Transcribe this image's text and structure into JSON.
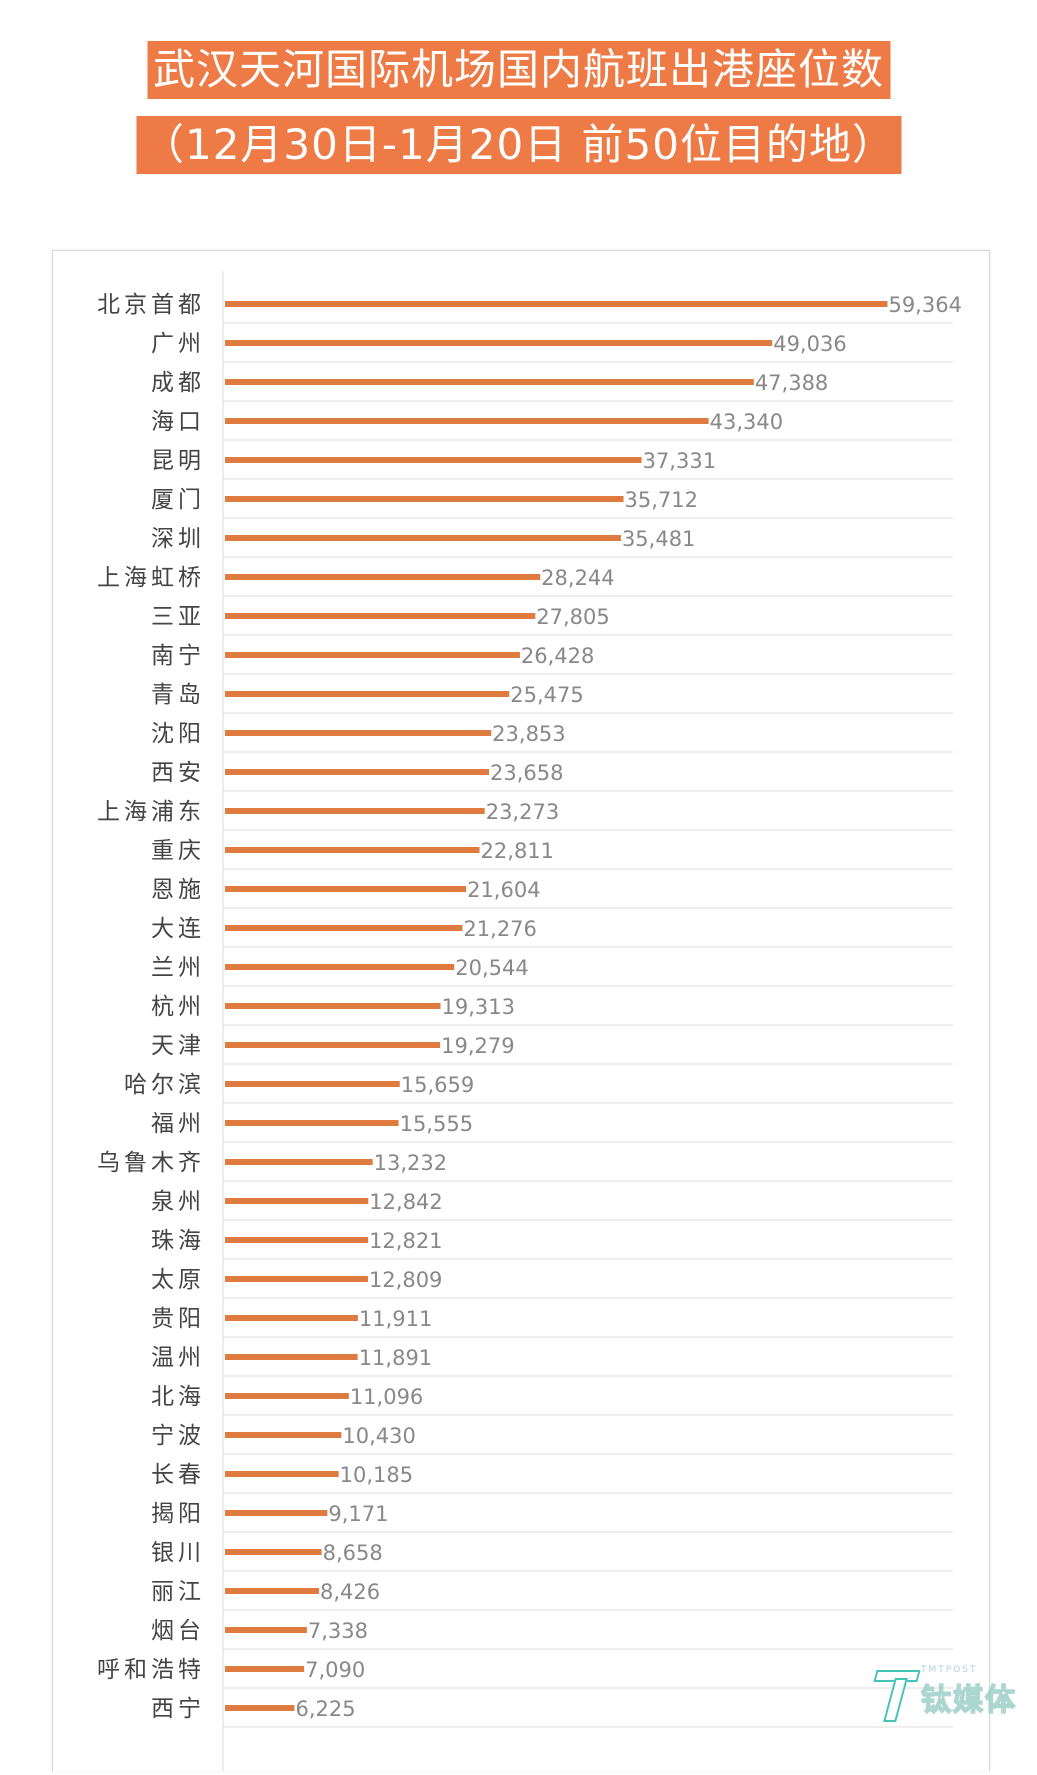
{
  "title_line1": "武汉天河国际机场国内航班出港座位数",
  "title_line2": "（12月30日-1月20日 前50位目的地）",
  "colors": {
    "bar": "#e07b40",
    "grid": "#dddddd",
    "title_bg": "#ee7a45",
    "text": "#444444",
    "value_text": "#888888"
  },
  "watermark": {
    "small": "TMTPOST",
    "big": "钛媒体"
  },
  "chart_data": {
    "type": "bar",
    "orientation": "horizontal",
    "title": "武汉天河国际机场国内航班出港座位数（12月30日-1月20日 前50位目的地）",
    "xlabel": "",
    "ylabel": "",
    "xlim": [
      0,
      69000
    ],
    "grid": true,
    "data_labels": true,
    "categories": [
      "北京首都",
      "广州",
      "成都",
      "海口",
      "昆明",
      "厦门",
      "深圳",
      "上海虹桥",
      "三亚",
      "南宁",
      "青岛",
      "沈阳",
      "西安",
      "上海浦东",
      "重庆",
      "恩施",
      "大连",
      "兰州",
      "杭州",
      "天津",
      "哈尔滨",
      "福州",
      "乌鲁木齐",
      "泉州",
      "珠海",
      "太原",
      "贵阳",
      "温州",
      "北海",
      "宁波",
      "长春",
      "揭阳",
      "银川",
      "丽江",
      "烟台",
      "呼和浩特",
      "西宁"
    ],
    "values": [
      59364,
      49036,
      47388,
      43340,
      37331,
      35712,
      35481,
      28244,
      27805,
      26428,
      25475,
      23853,
      23658,
      23273,
      22811,
      21604,
      21276,
      20544,
      19313,
      19279,
      15659,
      15555,
      13232,
      12842,
      12821,
      12809,
      11911,
      11891,
      11096,
      10430,
      10185,
      9171,
      8658,
      8426,
      7338,
      7090,
      6225
    ],
    "value_labels": [
      "59,364",
      "49,036",
      "47,388",
      "43,340",
      "37,331",
      "35,712",
      "35,481",
      "28,244",
      "27,805",
      "26,428",
      "25,475",
      "23,853",
      "23,658",
      "23,273",
      "22,811",
      "21,604",
      "21,276",
      "20,544",
      "19,313",
      "19,279",
      "15,659",
      "15,555",
      "13,232",
      "12,842",
      "12,821",
      "12,809",
      "11,911",
      "11,891",
      "11,096",
      "10,430",
      "10,185",
      "9,171",
      "8,658",
      "8,426",
      "7,338",
      "7,090",
      "6,225"
    ]
  }
}
